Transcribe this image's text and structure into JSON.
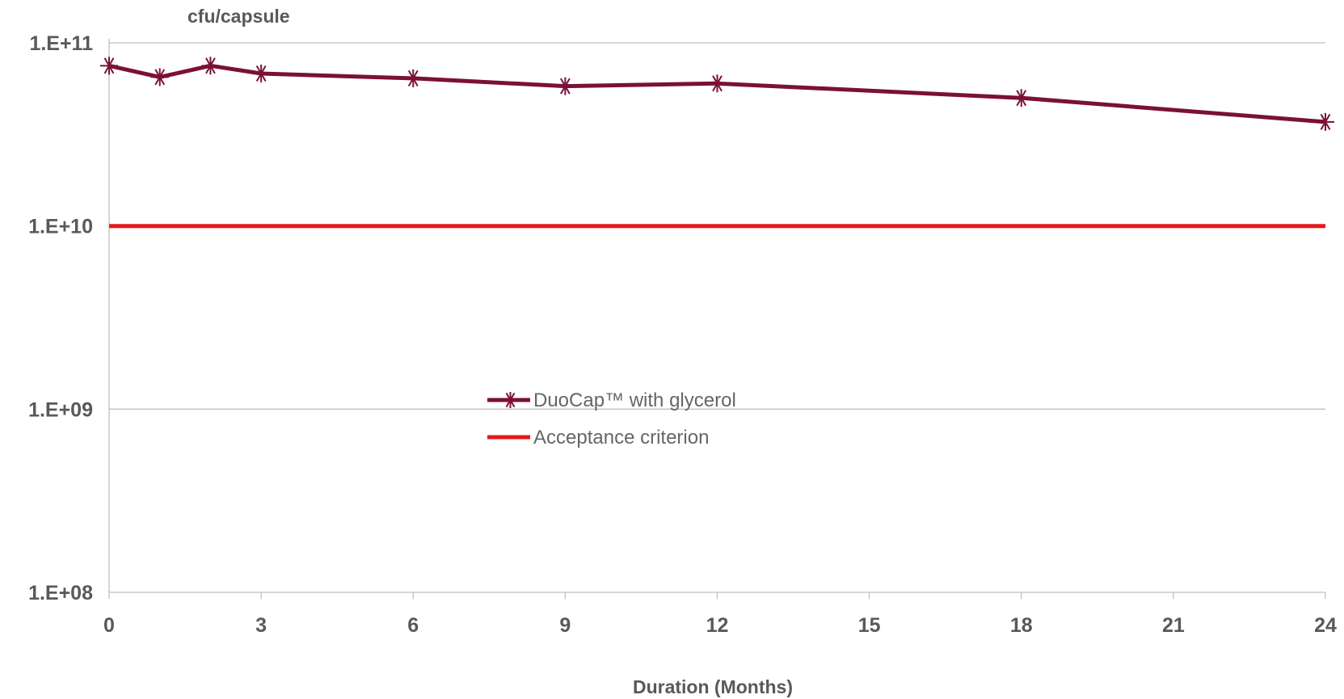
{
  "chart_data": {
    "type": "line",
    "ylabel": "cfu/capsule",
    "xlabel": "Duration (Months)",
    "yscale": "log",
    "ylim": [
      100000000,
      100000000000
    ],
    "yticks": [
      100000000,
      1000000000,
      10000000000,
      100000000000
    ],
    "yticklabels": [
      "1.E+08",
      "1.E+09",
      "1.E+10",
      "1.E+11"
    ],
    "xlim": [
      0,
      24
    ],
    "xticks": [
      0,
      3,
      6,
      9,
      12,
      15,
      18,
      21,
      24
    ],
    "xticklabels": [
      "0",
      "3",
      "6",
      "9",
      "12",
      "15",
      "18",
      "21",
      "24"
    ],
    "grid": "horizontal",
    "legend_position": "center-left",
    "series": [
      {
        "name": "DuoCap™ with glycerol",
        "color": "#7b1038",
        "marker": "asterisk",
        "x": [
          0,
          1,
          2,
          3,
          6,
          9,
          12,
          18,
          24
        ],
        "y": [
          75000000000,
          65000000000,
          75000000000,
          68000000000,
          64000000000,
          58000000000,
          60000000000,
          50000000000,
          37000000000
        ]
      },
      {
        "name": "Acceptance criterion",
        "color": "#e31a1c",
        "marker": "none",
        "x": [
          0,
          24
        ],
        "y": [
          10000000000,
          10000000000
        ]
      }
    ]
  }
}
